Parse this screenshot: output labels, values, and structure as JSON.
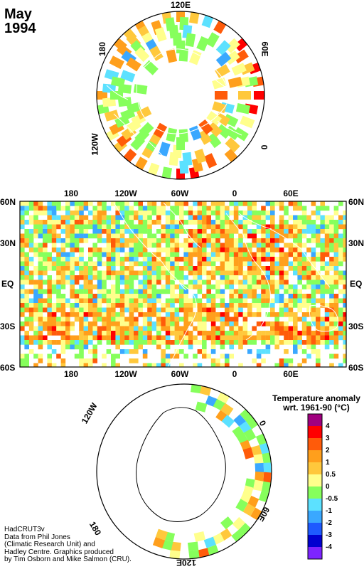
{
  "title": {
    "month": "May",
    "year": "1994"
  },
  "north_polar": {
    "labels": {
      "top": "120E",
      "upper_left": "180",
      "upper_right": "60E",
      "left": "120W",
      "right": "0"
    }
  },
  "world_map": {
    "top_lon_labels": [
      "180",
      "120W",
      "60W",
      "0",
      "60E"
    ],
    "bottom_lon_labels": [
      "180",
      "120W",
      "60W",
      "0",
      "60E"
    ],
    "lat_labels": [
      "60N",
      "30N",
      "EQ",
      "30S",
      "60S"
    ]
  },
  "south_polar": {
    "labels": {
      "upper_left": "120W",
      "right": "0",
      "lower_left": "180",
      "lower_right": "60E",
      "bottom": "120E"
    }
  },
  "legend": {
    "title_line1": "Temperature anomaly",
    "title_line2": "wrt. 1961-90  (°C)",
    "levels": [
      {
        "label": "4",
        "color": "#a0007f"
      },
      {
        "label": "3",
        "color": "#ff0000"
      },
      {
        "label": "2",
        "color": "#ff5b0a"
      },
      {
        "label": "1",
        "color": "#ff9f1c"
      },
      {
        "label": "0.5",
        "color": "#ffc83c"
      },
      {
        "label": "0",
        "color": "#ffff8c"
      },
      {
        "label": "-0.5",
        "color": "#86ff5c"
      },
      {
        "label": "-1",
        "color": "#5ce1ff"
      },
      {
        "label": "-2",
        "color": "#3aa8ff"
      },
      {
        "label": "-3",
        "color": "#1e5aff"
      },
      {
        "label": "-4",
        "color": "#0000d0"
      },
      {
        "label": "",
        "color": "#7d24ff"
      }
    ]
  },
  "credit": [
    "HadCRUT3v",
    "Data from Phil Jones",
    "(Climatic Research Unit) and",
    "Hadley Centre.  Graphics produced",
    "by Tim Osborn and Mike Salmon (CRU)."
  ]
}
